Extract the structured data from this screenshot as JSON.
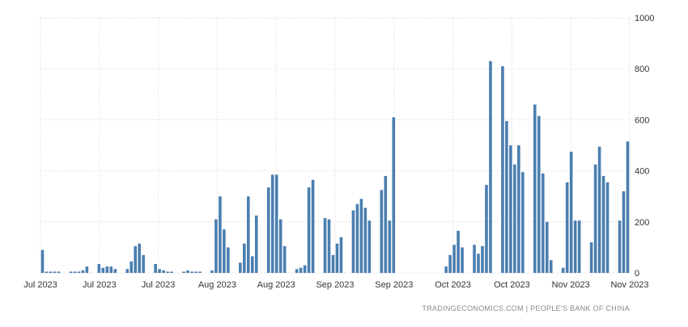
{
  "chart_data": {
    "type": "bar",
    "x_tick_labels": [
      "Jul 2023",
      "Jul 2023",
      "Jul 2023",
      "Aug 2023",
      "Aug 2023",
      "Sep 2023",
      "Sep 2023",
      "Oct 2023",
      "Oct 2023",
      "Nov 2023",
      "Nov 2023"
    ],
    "y_ticks": [
      0,
      200,
      400,
      600,
      800,
      1000
    ],
    "ylim": [
      0,
      1000
    ],
    "grid": true,
    "bar_color": "#4a7eb0",
    "values": [
      90,
      5,
      5,
      5,
      5,
      0,
      0,
      5,
      5,
      5,
      10,
      25,
      0,
      0,
      35,
      20,
      25,
      25,
      15,
      0,
      0,
      15,
      45,
      105,
      115,
      70,
      0,
      0,
      35,
      15,
      10,
      5,
      5,
      0,
      0,
      5,
      10,
      5,
      5,
      5,
      0,
      0,
      10,
      210,
      300,
      170,
      100,
      0,
      0,
      40,
      115,
      300,
      65,
      225,
      0,
      0,
      335,
      385,
      385,
      210,
      105,
      0,
      0,
      15,
      20,
      30,
      335,
      365,
      0,
      0,
      215,
      210,
      70,
      115,
      140,
      0,
      0,
      245,
      270,
      290,
      255,
      205,
      0,
      0,
      325,
      380,
      205,
      610,
      0,
      0,
      0,
      0,
      0,
      0,
      0,
      0,
      0,
      0,
      0,
      0,
      25,
      70,
      110,
      165,
      100,
      0,
      0,
      110,
      75,
      105,
      345,
      830,
      0,
      0,
      810,
      595,
      500,
      425,
      500,
      395,
      0,
      0,
      660,
      615,
      390,
      200,
      50,
      0,
      0,
      20,
      355,
      475,
      205,
      205,
      0,
      0,
      120,
      425,
      495,
      380,
      355,
      0,
      0,
      205,
      320,
      515
    ],
    "credit": "TRADINGECONOMICS.COM  |  PEOPLE'S BANK OF CHINA"
  }
}
